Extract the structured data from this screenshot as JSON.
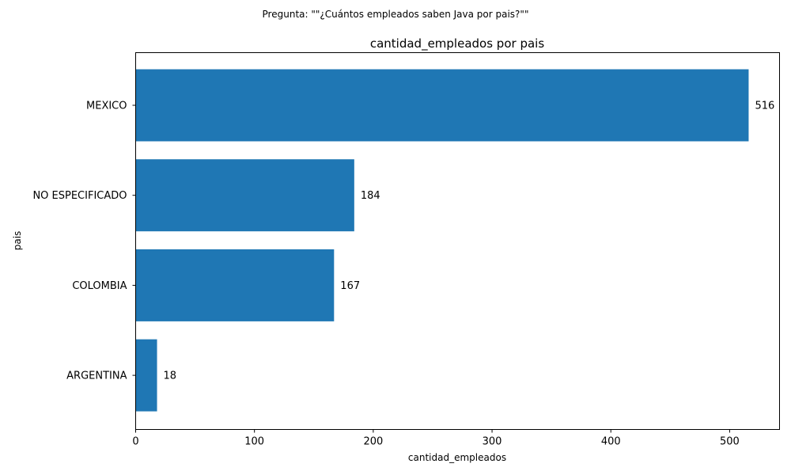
{
  "chart_data": {
    "type": "bar",
    "orientation": "horizontal",
    "suptitle": "Pregunta: \"\"¿Cuántos empleados saben Java por pais?\"\"",
    "title": "cantidad_empleados por pais",
    "xlabel": "cantidad_empleados",
    "ylabel": "pais",
    "categories": [
      "MEXICO",
      "NO ESPECIFICADO",
      "COLOMBIA",
      "ARGENTINA"
    ],
    "values": [
      516,
      184,
      167,
      18
    ],
    "xlim": [
      0,
      542
    ],
    "xticks": [
      0,
      100,
      200,
      300,
      400,
      500
    ],
    "bar_color": "#1f77b4",
    "grid": false,
    "data_labels": true
  }
}
